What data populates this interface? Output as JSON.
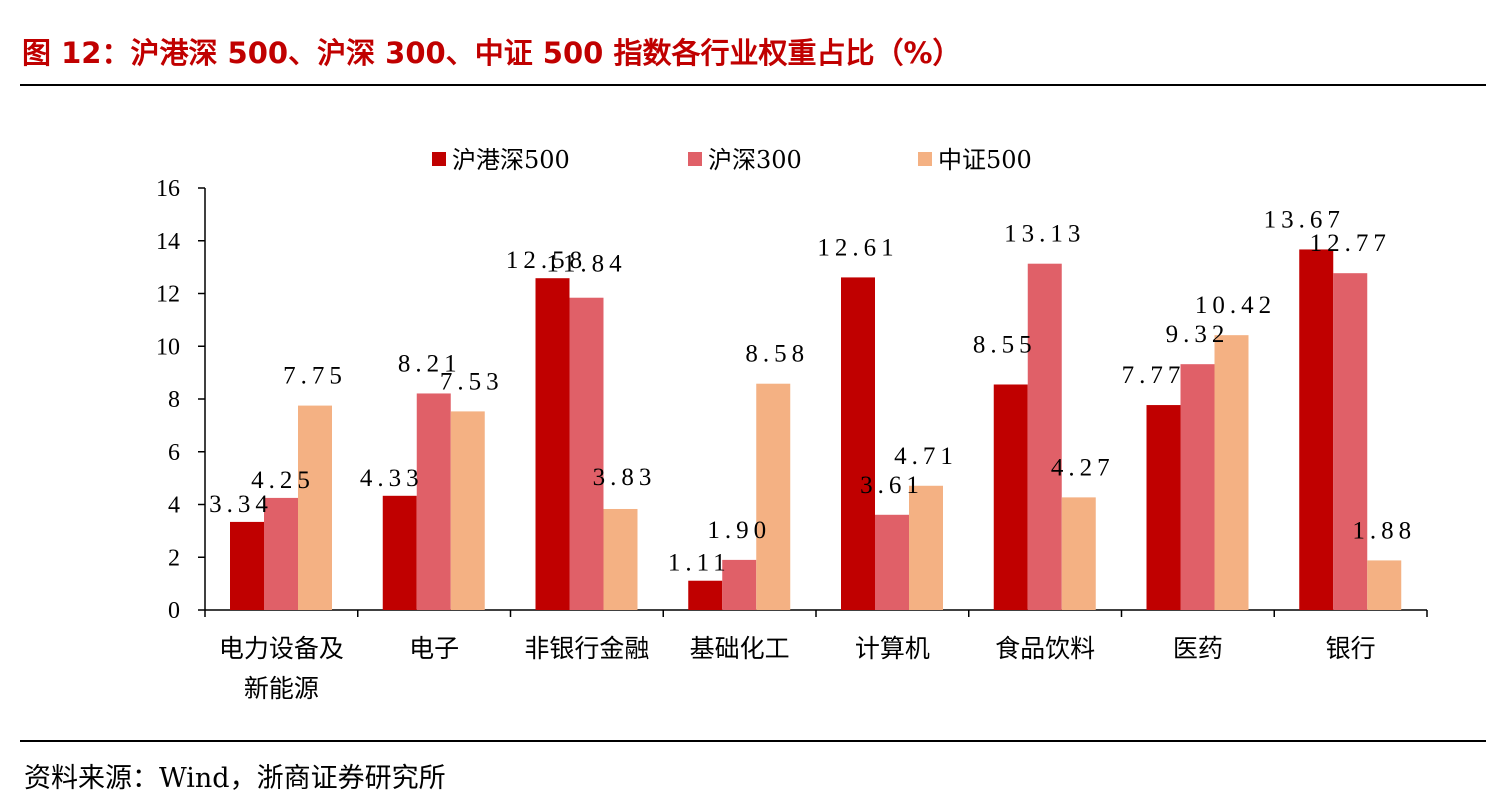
{
  "header": {
    "title": "图 12：沪港深 500、沪深 300、中证 500 指数各行业权重占比（%）"
  },
  "footer": {
    "source": "资料来源：Wind，浙商证券研究所"
  },
  "chart_data": {
    "type": "bar",
    "title": "",
    "xlabel": "",
    "ylabel": "",
    "ylim": [
      0,
      16
    ],
    "yticks": [
      "0",
      "2",
      "4",
      "6",
      "8",
      "10",
      "12",
      "14",
      "16"
    ],
    "grid": false,
    "legend_position": "top",
    "categories": [
      [
        "电力设备及",
        "新能源"
      ],
      [
        "电子"
      ],
      [
        "非银行金融"
      ],
      [
        "基础化工"
      ],
      [
        "计算机"
      ],
      [
        "食品饮料"
      ],
      [
        "医药"
      ],
      [
        "银行"
      ]
    ],
    "series": [
      {
        "name": "沪港深500",
        "color": "#c00000",
        "values": [
          3.34,
          4.33,
          12.58,
          1.11,
          12.61,
          8.55,
          7.77,
          13.67
        ],
        "labels": [
          "3.34",
          "4.33",
          "12.58",
          "1.11",
          "12.61",
          "8.55",
          "7.77",
          "13.67"
        ]
      },
      {
        "name": "沪深300",
        "color": "#e06068",
        "values": [
          4.25,
          8.21,
          11.84,
          1.9,
          3.61,
          13.13,
          9.32,
          12.77
        ],
        "labels": [
          "4.25",
          "8.21",
          "11.84",
          "1.90",
          "3.61",
          "13.13",
          "9.32",
          "12.77"
        ]
      },
      {
        "name": "中证500",
        "color": "#f4b183",
        "values": [
          7.75,
          7.53,
          3.83,
          8.58,
          4.71,
          4.27,
          10.42,
          1.88
        ],
        "labels": [
          "7.75",
          "7.53",
          "3.83",
          "8.58",
          "4.71",
          "4.27",
          "10.42",
          "1.88"
        ]
      }
    ]
  }
}
